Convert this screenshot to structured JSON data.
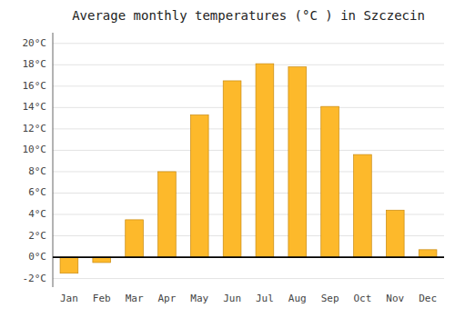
{
  "chart_data": {
    "type": "bar",
    "title": "Average monthly temperatures (°C ) in Szczecin",
    "categories": [
      "Jan",
      "Feb",
      "Mar",
      "Apr",
      "May",
      "Jun",
      "Jul",
      "Aug",
      "Sep",
      "Oct",
      "Nov",
      "Dec"
    ],
    "values": [
      -1.5,
      -0.5,
      3.5,
      8.0,
      13.3,
      16.5,
      18.1,
      17.8,
      14.1,
      9.6,
      4.4,
      0.7
    ],
    "color": "#FDB92B",
    "ylim": [
      -2.8,
      21.0
    ],
    "yticks": [
      {
        "value": -2,
        "label": "-2°C"
      },
      {
        "value": 0,
        "label": "0°C"
      },
      {
        "value": 2,
        "label": "2°C"
      },
      {
        "value": 4,
        "label": "4°C"
      },
      {
        "value": 6,
        "label": "6°C"
      },
      {
        "value": 8,
        "label": "8°C"
      },
      {
        "value": 10,
        "label": "10°C"
      },
      {
        "value": 12,
        "label": "12°C"
      },
      {
        "value": 14,
        "label": "14°C"
      },
      {
        "value": 16,
        "label": "16°C"
      },
      {
        "value": 18,
        "label": "18°C"
      },
      {
        "value": 20,
        "label": "20°C"
      }
    ],
    "grid": true
  }
}
